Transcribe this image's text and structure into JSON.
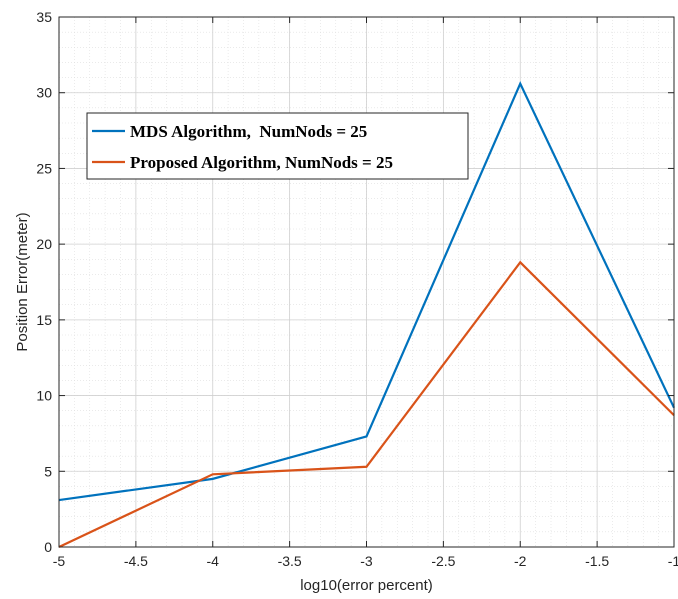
{
  "chart_data": {
    "type": "line",
    "title": "",
    "xlabel": "log10(error percent)",
    "ylabel": "Position Error(meter)",
    "xlim": [
      -5,
      -1
    ],
    "ylim": [
      0,
      35
    ],
    "xticks": [
      -5,
      -4.5,
      -4,
      -3.5,
      -3,
      -2.5,
      -2,
      -1.5,
      -1
    ],
    "yticks": [
      0,
      5,
      10,
      15,
      20,
      25,
      30,
      35
    ],
    "xtick_labels": [
      "-5",
      "-4.5",
      "-4",
      "-3.5",
      "-3",
      "-2.5",
      "-2",
      "-1.5",
      "-1"
    ],
    "ytick_labels": [
      "0",
      "5",
      "10",
      "15",
      "20",
      "25",
      "30",
      "35"
    ],
    "grid": true,
    "minor_grid": true,
    "legend_position": "upper-left",
    "series": [
      {
        "name": "MDS Algorithm,  NumNods = 25",
        "color": "#0072BD",
        "x": [
          -5,
          -4,
          -3,
          -2,
          -1
        ],
        "y": [
          3.1,
          4.5,
          7.3,
          30.6,
          9.2
        ]
      },
      {
        "name": "Proposed Algorithm, NumNods = 25",
        "color": "#D95319",
        "x": [
          -5,
          -4,
          -3,
          -2,
          -1
        ],
        "y": [
          0.0,
          4.8,
          5.3,
          18.8,
          8.7
        ]
      }
    ]
  }
}
